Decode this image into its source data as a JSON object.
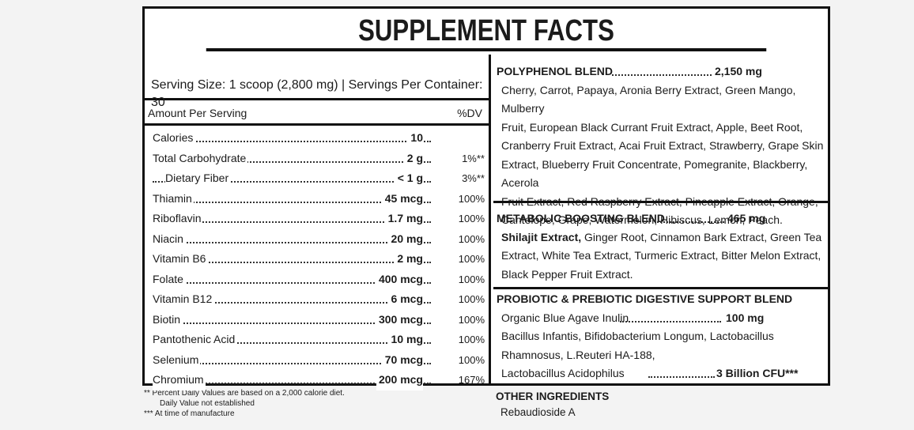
{
  "title": "SUPPLEMENT FACTS",
  "serving": "Serving Size: 1 scoop (2,800 mg) | Servings Per Container: 30",
  "amount_header": "Amount Per Serving",
  "dv_header": "%DV",
  "nutrients": [
    {
      "name": "Calories",
      "amount": "10",
      "dv": ""
    },
    {
      "name": "Total Carbohydrate",
      "amount": "2 g",
      "dv": "1%**"
    },
    {
      "name": "Dietary Fiber",
      "amount": "< 1 g",
      "dv": "3%**"
    },
    {
      "name": "Thiamin",
      "amount": "45 mcg",
      "dv": "100%"
    },
    {
      "name": "Riboflavin",
      "amount": "1.7 mg",
      "dv": "100%"
    },
    {
      "name": "Niacin",
      "amount": "20 mg",
      "dv": "100%"
    },
    {
      "name": "Vitamin B6",
      "amount": "2 mg",
      "dv": "100%"
    },
    {
      "name": "Folate",
      "amount": "400 mcg",
      "dv": "100%"
    },
    {
      "name": "Vitamin B12",
      "amount": "6 mcg",
      "dv": "100%"
    },
    {
      "name": "Biotin",
      "amount": "300 mcg",
      "dv": "100%"
    },
    {
      "name": "Pantothenic Acid",
      "amount": "10 mg",
      "dv": "100%"
    },
    {
      "name": "Selenium",
      "amount": "70 mcg",
      "dv": "100%"
    },
    {
      "name": "Chromium",
      "amount": "200 mcg",
      "dv": "167%"
    }
  ],
  "polyphenol": {
    "name": "POLYPHENOL BLEND",
    "amount": "2,150 mg",
    "lines": [
      "Cherry, Carrot, Papaya, Aronia Berry Extract, Green Mango, Mulberry",
      "Fruit, European Black Currant Fruit Extract, Apple, Beet Root,",
      "Cranberry Fruit Extract, Acai Fruit Extract, Strawberry, Grape Skin",
      "Extract, Blueberry Fruit Concentrate, Pomegranite, Blackberry, Acerola",
      "Fruit Extract, Red Raspberry Extract, Pineapple Extract, Orange,",
      "Cantelope,  Grape, Watermelon, Hibiscus, Lemon, Peach."
    ]
  },
  "metabolic": {
    "name": "METABOLIC BOOSTING BLEND",
    "amount": "465 mg",
    "first_bold": "Shilajit Extract,",
    "first_rest": " Ginger Root, Cinnamon Bark Extract, Green Tea",
    "lines": [
      "Extract, White Tea Extract, Turmeric Extract, Bitter Melon Extract,",
      "Black Pepper Fruit Extract."
    ]
  },
  "probiotic": {
    "name": "PROBIOTIC & PREBIOTIC DIGESTIVE SUPPORT BLEND",
    "inulin_name": "Organic Blue Agave Inulin",
    "inulin_amount": "100 mg",
    "lines": [
      "Bacillus Infantis, Bifidobacterium Longum, Lactobacillus",
      "Rhamnosus, L.Reuteri HA-188,"
    ],
    "acid_name": "Lactobacillus Acidophilus",
    "acid_amount": "3 Billion CFU***"
  },
  "footnotes": {
    "line1": "**  Percent Daily Values are based on a 2,000 calorie diet.",
    "line2": "Daily Value not established",
    "line3": "*** At time of manufacture"
  },
  "other": {
    "heading": "OTHER INGREDIENTS",
    "value": "Rebaudioside A"
  }
}
